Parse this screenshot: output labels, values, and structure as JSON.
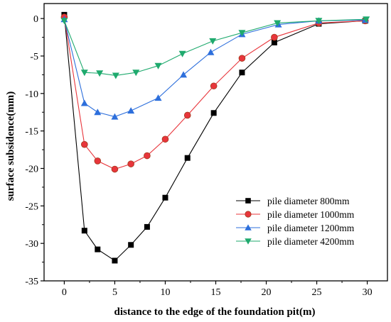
{
  "chart_data": {
    "type": "line",
    "xlabel": "distance to the edge of the foundation pit(m)",
    "ylabel": "surface subsidence(mm)",
    "xlim": [
      -2,
      32
    ],
    "ylim": [
      -35,
      2
    ],
    "x_ticks": [
      0,
      5,
      10,
      15,
      20,
      25,
      30
    ],
    "y_ticks": [
      0,
      -5,
      -10,
      -15,
      -20,
      -25,
      -30,
      -35
    ],
    "legend_position": "bottom-right",
    "grid": false,
    "series": [
      {
        "name": "pile diameter 800mm",
        "color": "#000000",
        "marker": "square",
        "x": [
          0,
          2,
          3.3,
          5,
          6.6,
          8.2,
          10,
          12.2,
          14.8,
          17.6,
          20.8,
          25.2,
          29.8
        ],
        "y": [
          0.5,
          -28.3,
          -30.8,
          -32.3,
          -30.2,
          -27.8,
          -23.9,
          -18.6,
          -12.6,
          -7.2,
          -3.2,
          -0.7,
          -0.3
        ]
      },
      {
        "name": "pile diameter 1000mm",
        "color": "#e8353b",
        "marker": "circle",
        "x": [
          0,
          2,
          3.3,
          5,
          6.6,
          8.2,
          10,
          12.2,
          14.8,
          17.6,
          20.8,
          25.2,
          29.8
        ],
        "y": [
          0.2,
          -16.8,
          -19.0,
          -20.1,
          -19.4,
          -18.3,
          -16.1,
          -12.9,
          -9.0,
          -5.3,
          -2.5,
          -0.6,
          -0.3
        ]
      },
      {
        "name": "pile diameter 1200mm",
        "color": "#2d6fdc",
        "marker": "triangle-up",
        "x": [
          0,
          2,
          3.3,
          5,
          6.6,
          9.3,
          11.8,
          14.5,
          17.6,
          21.2,
          25.2,
          29.8
        ],
        "y": [
          -0.1,
          -11.3,
          -12.5,
          -13.1,
          -12.3,
          -10.6,
          -7.5,
          -4.5,
          -2.1,
          -0.8,
          -0.3,
          -0.2
        ]
      },
      {
        "name": "pile diameter 4200mm",
        "color": "#1faa6e",
        "marker": "triangle-down",
        "x": [
          0,
          2,
          3.5,
          5.1,
          7.1,
          9.3,
          11.7,
          14.7,
          17.6,
          21.1,
          25.2,
          29.9
        ],
        "y": [
          -0.3,
          -7.2,
          -7.3,
          -7.6,
          -7.2,
          -6.3,
          -4.7,
          -3.0,
          -1.9,
          -0.6,
          -0.3,
          -0.1
        ]
      }
    ]
  }
}
